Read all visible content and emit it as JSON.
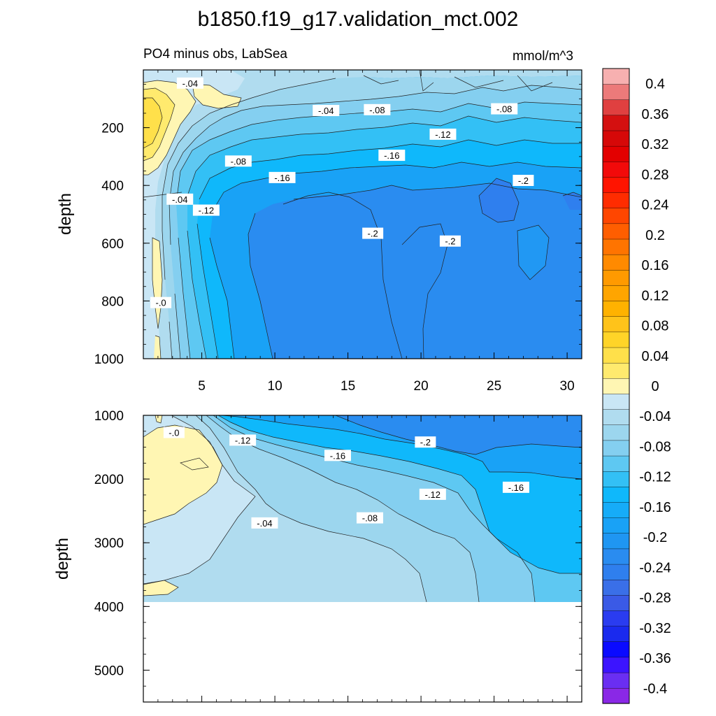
{
  "chart_data": {
    "type": "contour",
    "title": "b1850.f19_g17.validation_mct.002",
    "subtitle_left": "PO4 minus obs, LabSea",
    "units": "mmol/m^3",
    "ylabel": "depth",
    "upper_panel": {
      "ylim": [
        0,
        1000
      ],
      "yticks": [
        "200",
        "400",
        "600",
        "800",
        "1000"
      ],
      "xticks": [
        "5",
        "10",
        "15",
        "20",
        "25",
        "30"
      ],
      "xlim": [
        1,
        31
      ],
      "contour_labels": [
        {
          "text": "-.04",
          "x": 4.2,
          "y": 48
        },
        {
          "text": "-.04",
          "x": 13.5,
          "y": 143
        },
        {
          "text": "-.08",
          "x": 17,
          "y": 140
        },
        {
          "text": "-.08",
          "x": 25.7,
          "y": 137
        },
        {
          "text": "-.12",
          "x": 21.5,
          "y": 225
        },
        {
          "text": "-.08",
          "x": 7.5,
          "y": 318
        },
        {
          "text": "-.16",
          "x": 18,
          "y": 298
        },
        {
          "text": "-.16",
          "x": 10.5,
          "y": 375
        },
        {
          "text": "-.2",
          "x": 27,
          "y": 385
        },
        {
          "text": "-.04",
          "x": 3.5,
          "y": 450
        },
        {
          "text": "-.12",
          "x": 5.3,
          "y": 488
        },
        {
          "text": "-.2",
          "x": 16.7,
          "y": 568
        },
        {
          "text": "-.2",
          "x": 22,
          "y": 595
        },
        {
          "text": "-.0",
          "x": 2.2,
          "y": 808
        }
      ]
    },
    "lower_panel": {
      "ylim": [
        1000,
        5500
      ],
      "yticks": [
        "1000",
        "2000",
        "3000",
        "4000",
        "5000"
      ],
      "xlim": [
        1,
        31
      ],
      "bathymetry_depth": 3880,
      "contour_labels": [
        {
          "text": "-.0",
          "x": 3.1,
          "y": 1280
        },
        {
          "text": "-.12",
          "x": 7.8,
          "y": 1400
        },
        {
          "text": "-.2",
          "x": 20.3,
          "y": 1430
        },
        {
          "text": "-.16",
          "x": 14.3,
          "y": 1640
        },
        {
          "text": "-.12",
          "x": 20.8,
          "y": 2250
        },
        {
          "text": "-.16",
          "x": 26.5,
          "y": 2140
        },
        {
          "text": "-.04",
          "x": 9.3,
          "y": 2700
        },
        {
          "text": "-.08",
          "x": 16.5,
          "y": 2620
        }
      ]
    },
    "colorbar": {
      "levels": [
        -0.42,
        -0.4,
        -0.38,
        -0.36,
        -0.34,
        -0.32,
        -0.3,
        -0.28,
        -0.26,
        -0.24,
        -0.22,
        -0.2,
        -0.18,
        -0.16,
        -0.14,
        -0.12,
        -0.1,
        -0.08,
        -0.06,
        -0.04,
        -0.02,
        0,
        0.02,
        0.04,
        0.06,
        0.08,
        0.1,
        0.12,
        0.14,
        0.16,
        0.18,
        0.2,
        0.22,
        0.24,
        0.26,
        0.28,
        0.3,
        0.32,
        0.34,
        0.36,
        0.38,
        0.4,
        0.42
      ],
      "colors": [
        "#8a28e6",
        "#6a2ef2",
        "#3c14ff",
        "#0a0aff",
        "#1a2aee",
        "#2a3cf0",
        "#3a5ae6",
        "#3a6fe8",
        "#2f7fee",
        "#2a8cf0",
        "#1f96f2",
        "#19a2f6",
        "#16acf8",
        "#0fb8fb",
        "#33c0f5",
        "#5ec8f2",
        "#84cff0",
        "#9cd6ee",
        "#b0dcef",
        "#c9e6f5",
        "#fff6b3",
        "#ffea6e",
        "#ffe04a",
        "#ffd428",
        "#ffc31a",
        "#ffb200",
        "#ffa500",
        "#ff9a00",
        "#ff8a00",
        "#ff7400",
        "#ff5e00",
        "#ff4600",
        "#ff2c00",
        "#ff1400",
        "#f20a0a",
        "#e30000",
        "#d60808",
        "#d41010",
        "#e04040",
        "#ec7a7a",
        "#f7b0b0"
      ],
      "tick_labels": [
        "0.4",
        "0.36",
        "0.32",
        "0.28",
        "0.24",
        "0.2",
        "0.16",
        "0.12",
        "0.08",
        "0.04",
        "0",
        "-0.04",
        "-0.08",
        "-0.12",
        "-0.16",
        "-0.2",
        "-0.24",
        "-0.28",
        "-0.32",
        "-0.36",
        "-0.4"
      ]
    }
  }
}
